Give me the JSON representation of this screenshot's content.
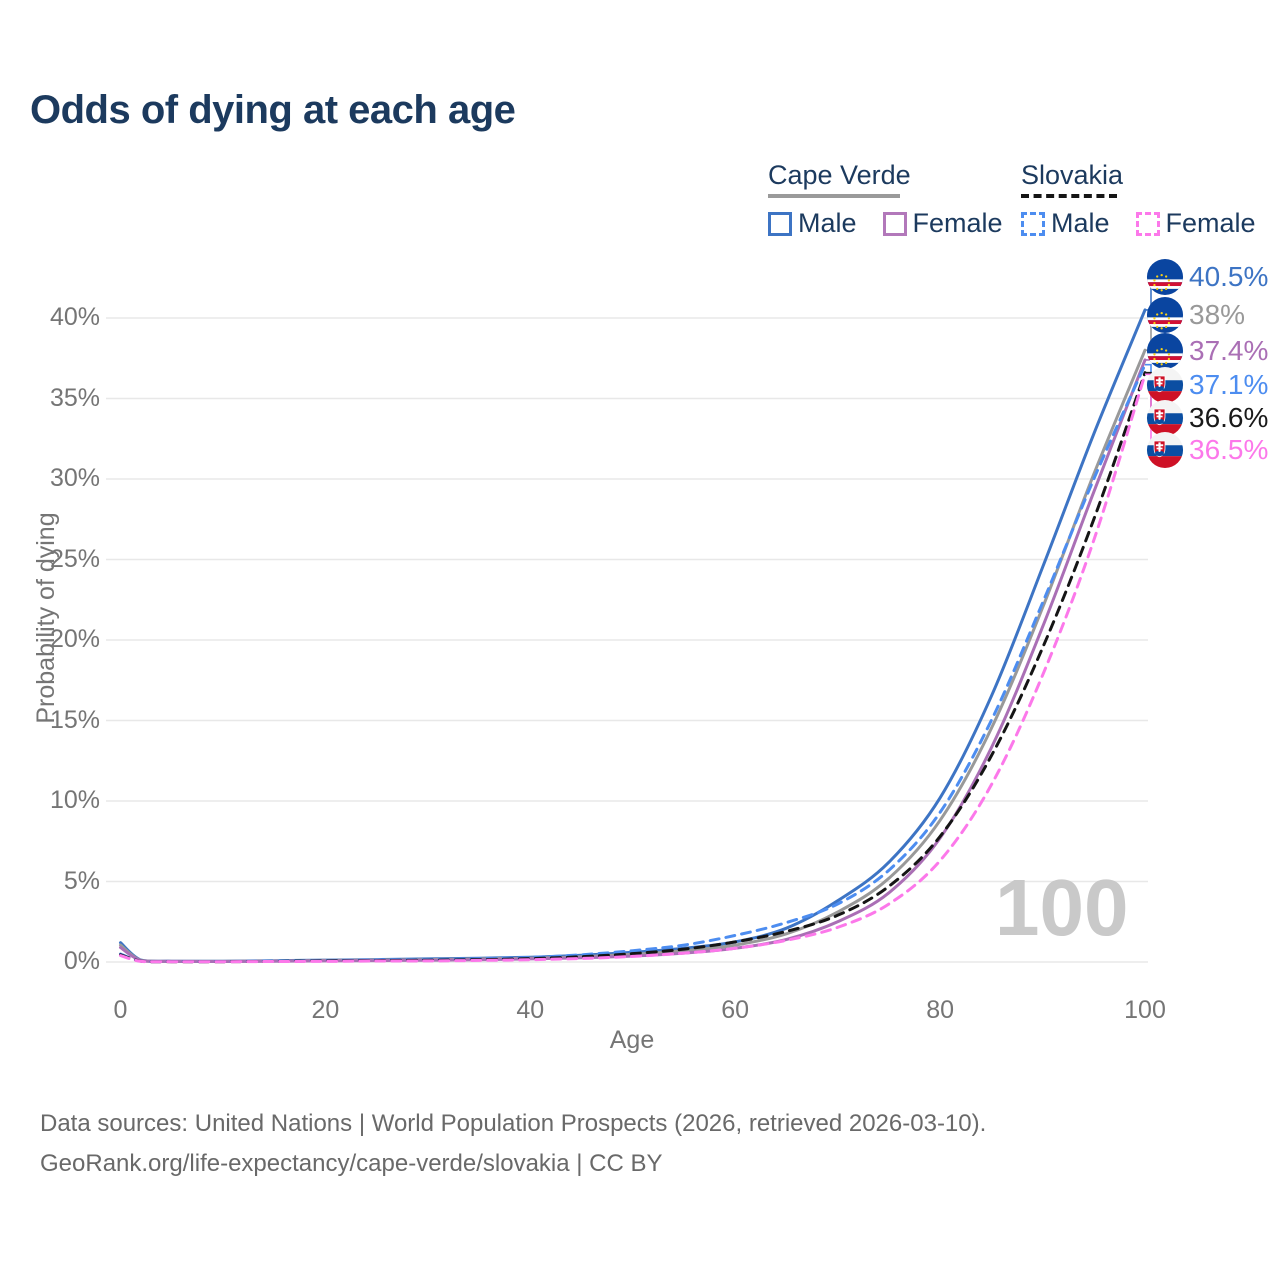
{
  "title": "Odds of dying at each age",
  "legend": {
    "groups": [
      {
        "label": "Cape Verde",
        "style": "solid",
        "color": "#9a9a9a"
      },
      {
        "label": "Slovakia",
        "style": "dashed",
        "color": "#151515"
      }
    ],
    "items": [
      {
        "label": "Male",
        "group": "Cape Verde",
        "color": "#3d74c4",
        "dash": false
      },
      {
        "label": "Female",
        "group": "Cape Verde",
        "color": "#b278ba",
        "dash": false
      },
      {
        "label": "Male",
        "group": "Slovakia",
        "color": "#4d8df0",
        "dash": true
      },
      {
        "label": "Female",
        "group": "Slovakia",
        "color": "#fc78ea",
        "dash": true
      }
    ]
  },
  "watermark": "100",
  "end_labels": [
    {
      "value": "40.5%",
      "color": "#3d74c4",
      "flag": "cape-verde",
      "series": "Cape Verde Male"
    },
    {
      "value": "38%",
      "color": "#999999",
      "flag": "cape-verde",
      "series": "Cape Verde"
    },
    {
      "value": "37.4%",
      "color": "#aa6fb5",
      "flag": "cape-verde",
      "series": "Cape Verde Female"
    },
    {
      "value": "37.1%",
      "color": "#4d8df0",
      "flag": "slovakia",
      "series": "Slovakia Male"
    },
    {
      "value": "36.6%",
      "color": "#1a1a1a",
      "flag": "slovakia",
      "series": "Slovakia"
    },
    {
      "value": "36.5%",
      "color": "#fc78ea",
      "flag": "slovakia",
      "series": "Slovakia Female"
    }
  ],
  "source": {
    "line1": "Data sources: United Nations | World Population Prospects (2026, retrieved 2026-03-10).",
    "line2": "GeoRank.org/life-expectancy/cape-verde/slovakia | CC BY"
  },
  "chart_data": {
    "type": "line",
    "title": "Odds of dying at each age",
    "xlabel": "Age",
    "ylabel": "Probability of dying",
    "xlim": [
      0,
      100
    ],
    "ylim": [
      0,
      42
    ],
    "x_ticks": [
      0,
      20,
      40,
      60,
      80,
      100
    ],
    "y_ticks": [
      "0%",
      "5%",
      "10%",
      "15%",
      "20%",
      "25%",
      "30%",
      "35%",
      "40%"
    ],
    "grid": "horizontal",
    "legend_position": "top-right",
    "series": [
      {
        "name": "Cape Verde Male",
        "color": "#3d74c4",
        "dash": false,
        "end_value": 40.5,
        "points": [
          [
            0,
            1.2
          ],
          [
            2,
            0.12
          ],
          [
            5,
            0.05
          ],
          [
            10,
            0.05
          ],
          [
            15,
            0.08
          ],
          [
            20,
            0.12
          ],
          [
            25,
            0.15
          ],
          [
            30,
            0.19
          ],
          [
            35,
            0.23
          ],
          [
            40,
            0.3
          ],
          [
            45,
            0.42
          ],
          [
            50,
            0.6
          ],
          [
            55,
            0.85
          ],
          [
            60,
            1.25
          ],
          [
            65,
            2.1
          ],
          [
            70,
            3.8
          ],
          [
            75,
            6.2
          ],
          [
            80,
            10.2
          ],
          [
            85,
            16.5
          ],
          [
            90,
            24.5
          ],
          [
            95,
            32.8
          ],
          [
            100,
            40.5
          ]
        ]
      },
      {
        "name": "Cape Verde",
        "color": "#999999",
        "dash": false,
        "end_value": 38,
        "points": [
          [
            0,
            1.05
          ],
          [
            2,
            0.1
          ],
          [
            5,
            0.04
          ],
          [
            10,
            0.04
          ],
          [
            15,
            0.06
          ],
          [
            20,
            0.1
          ],
          [
            25,
            0.12
          ],
          [
            30,
            0.15
          ],
          [
            35,
            0.19
          ],
          [
            40,
            0.24
          ],
          [
            45,
            0.33
          ],
          [
            50,
            0.48
          ],
          [
            55,
            0.7
          ],
          [
            60,
            1.05
          ],
          [
            65,
            1.75
          ],
          [
            70,
            3.1
          ],
          [
            75,
            5.2
          ],
          [
            80,
            8.8
          ],
          [
            85,
            14.5
          ],
          [
            90,
            22.0
          ],
          [
            95,
            30.3
          ],
          [
            100,
            38.0
          ]
        ]
      },
      {
        "name": "Cape Verde Female",
        "color": "#aa6fb5",
        "dash": false,
        "end_value": 37.4,
        "points": [
          [
            0,
            0.9
          ],
          [
            2,
            0.09
          ],
          [
            5,
            0.04
          ],
          [
            10,
            0.03
          ],
          [
            15,
            0.05
          ],
          [
            20,
            0.07
          ],
          [
            25,
            0.09
          ],
          [
            30,
            0.11
          ],
          [
            35,
            0.14
          ],
          [
            40,
            0.19
          ],
          [
            45,
            0.26
          ],
          [
            50,
            0.37
          ],
          [
            55,
            0.55
          ],
          [
            60,
            0.85
          ],
          [
            65,
            1.4
          ],
          [
            70,
            2.5
          ],
          [
            75,
            4.3
          ],
          [
            80,
            7.7
          ],
          [
            85,
            13.3
          ],
          [
            90,
            20.8
          ],
          [
            95,
            29.2
          ],
          [
            100,
            37.4
          ]
        ]
      },
      {
        "name": "Slovakia Male",
        "color": "#4d8df0",
        "dash": true,
        "end_value": 37.1,
        "points": [
          [
            0,
            0.5
          ],
          [
            2,
            0.05
          ],
          [
            5,
            0.03
          ],
          [
            10,
            0.03
          ],
          [
            15,
            0.06
          ],
          [
            20,
            0.1
          ],
          [
            25,
            0.12
          ],
          [
            30,
            0.15
          ],
          [
            35,
            0.2
          ],
          [
            40,
            0.28
          ],
          [
            45,
            0.45
          ],
          [
            50,
            0.7
          ],
          [
            55,
            1.05
          ],
          [
            60,
            1.65
          ],
          [
            65,
            2.45
          ],
          [
            70,
            3.6
          ],
          [
            75,
            5.7
          ],
          [
            80,
            9.3
          ],
          [
            85,
            15.0
          ],
          [
            90,
            22.3
          ],
          [
            95,
            30.0
          ],
          [
            100,
            37.1
          ]
        ]
      },
      {
        "name": "Slovakia",
        "color": "#151515",
        "dash": true,
        "end_value": 36.6,
        "points": [
          [
            0,
            0.45
          ],
          [
            2,
            0.05
          ],
          [
            5,
            0.02
          ],
          [
            10,
            0.02
          ],
          [
            15,
            0.04
          ],
          [
            20,
            0.07
          ],
          [
            25,
            0.09
          ],
          [
            30,
            0.11
          ],
          [
            35,
            0.15
          ],
          [
            40,
            0.21
          ],
          [
            45,
            0.33
          ],
          [
            50,
            0.52
          ],
          [
            55,
            0.8
          ],
          [
            60,
            1.25
          ],
          [
            65,
            1.9
          ],
          [
            70,
            2.9
          ],
          [
            75,
            4.7
          ],
          [
            80,
            7.8
          ],
          [
            85,
            12.8
          ],
          [
            90,
            19.5
          ],
          [
            95,
            27.5
          ],
          [
            100,
            36.6
          ]
        ]
      },
      {
        "name": "Slovakia Female",
        "color": "#fc78ea",
        "dash": true,
        "end_value": 36.5,
        "points": [
          [
            0,
            0.4
          ],
          [
            2,
            0.04
          ],
          [
            5,
            0.02
          ],
          [
            10,
            0.02
          ],
          [
            15,
            0.03
          ],
          [
            20,
            0.04
          ],
          [
            25,
            0.06
          ],
          [
            30,
            0.07
          ],
          [
            35,
            0.1
          ],
          [
            40,
            0.14
          ],
          [
            45,
            0.22
          ],
          [
            50,
            0.35
          ],
          [
            55,
            0.55
          ],
          [
            60,
            0.85
          ],
          [
            65,
            1.35
          ],
          [
            70,
            2.15
          ],
          [
            75,
            3.6
          ],
          [
            80,
            6.3
          ],
          [
            85,
            11.0
          ],
          [
            90,
            17.8
          ],
          [
            95,
            26.2
          ],
          [
            100,
            36.5
          ]
        ]
      }
    ]
  }
}
